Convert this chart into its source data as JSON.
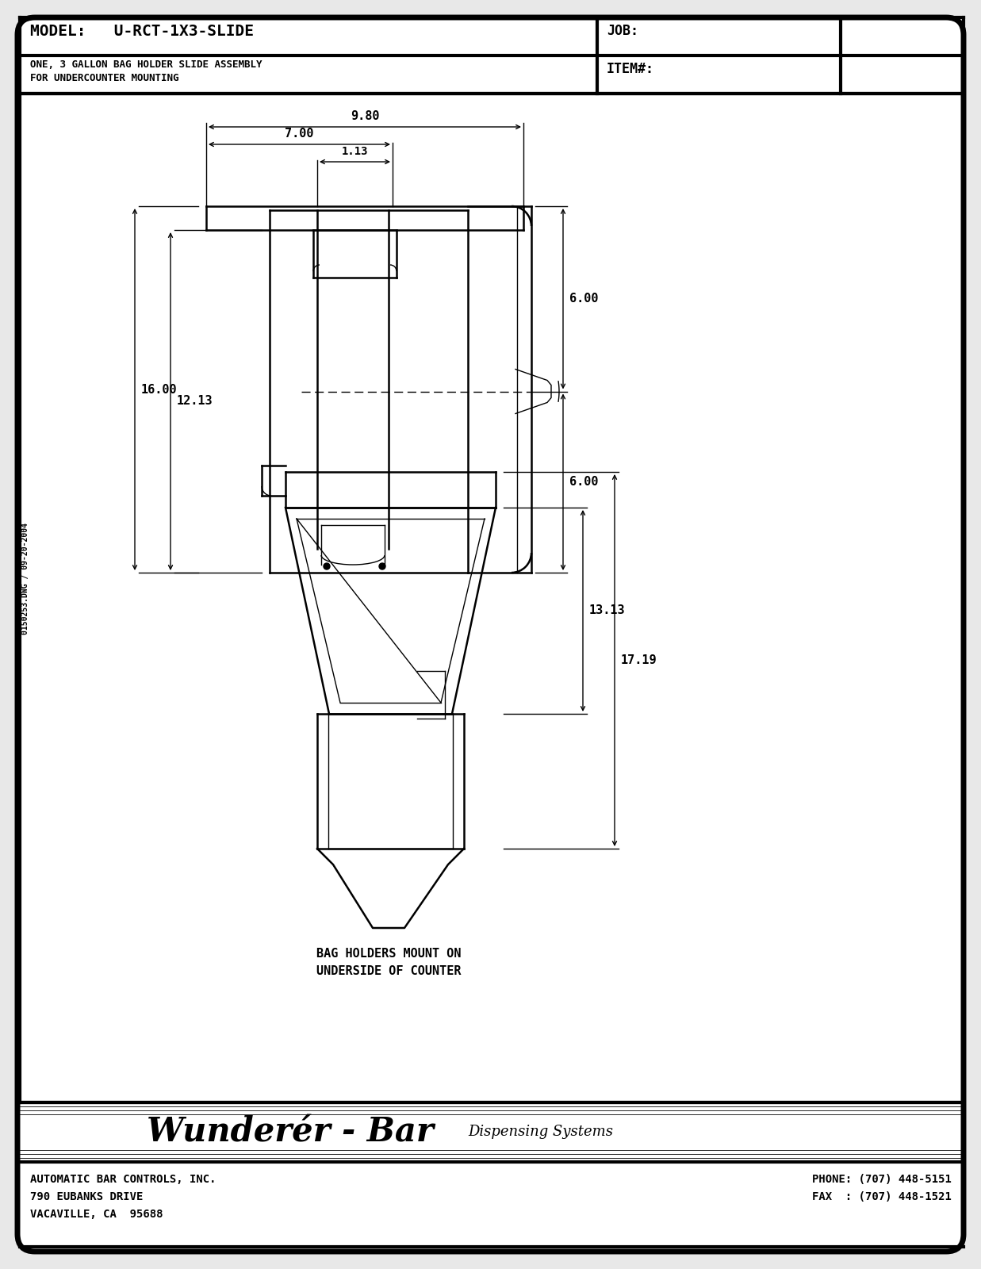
{
  "bg_color": "#e8e8e8",
  "paper_color": "#ffffff",
  "line_color": "#000000",
  "title_model": "MODEL:   U-RCT-1X3-SLIDE",
  "title_desc1": "ONE, 3 GALLON BAG HOLDER SLIDE ASSEMBLY",
  "title_desc2": "FOR UNDERCOUNTER MOUNTING",
  "job_label": "JOB:",
  "item_label": "ITEM#:",
  "wunderbar_text": "Wunderér - Bar",
  "dispensing_text": "Dispensing Systems",
  "company_line1": "AUTOMATIC BAR CONTROLS, INC.",
  "company_line2": "790 EUBANKS DRIVE",
  "company_line3": "VACAVILLE, CA  95688",
  "phone_line1": "PHONE: (707) 448-5151",
  "phone_line2": "FAX  : (707) 448-1521",
  "side_text": "0150253.DWG / 09-20-2004",
  "note_text1": "BAG HOLDERS MOUNT ON",
  "note_text2": "UNDERSIDE OF COUNTER",
  "dim_9_80": "9.80",
  "dim_7_00": "7.00",
  "dim_1_13": "1.13",
  "dim_6_00a": "6.00",
  "dim_6_00b": "6.00",
  "dim_16_00": "16.00",
  "dim_12_13": "12.13",
  "dim_13_13": "13.13",
  "dim_17_19": "17.19"
}
